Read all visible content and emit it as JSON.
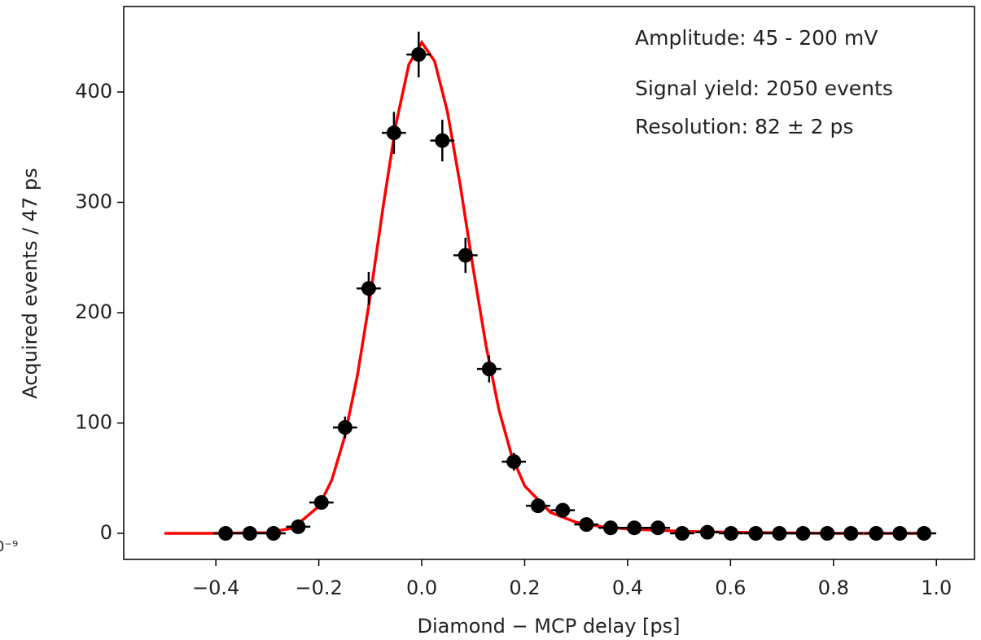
{
  "chart_data": {
    "type": "errorbar",
    "xlabel": "Diamond − MCP delay [ps]",
    "ylabel": "Acquired events / 47 ps",
    "offset_text": "0⁻⁹",
    "annotations": [
      "Amplitude: 45 - 200 mV",
      "Signal yield: 2050 events",
      "Resolution: 82 ± 2 ps"
    ],
    "xlim": [
      -0.579,
      1.074
    ],
    "ylim": [
      -23.6,
      477.5
    ],
    "xticks": [
      {
        "value": -0.4,
        "label": "−0.4"
      },
      {
        "value": -0.2,
        "label": "−0.2"
      },
      {
        "value": 0,
        "label": "0.0"
      },
      0.2,
      0.4,
      0.6,
      0.8,
      {
        "value": 1,
        "label": "1.0"
      }
    ],
    "yticks": [
      0,
      100,
      200,
      300,
      400
    ],
    "series": [
      {
        "type": "errorbar",
        "color": "#000000",
        "x": [
          -0.381,
          -0.334,
          -0.288,
          -0.24,
          -0.195,
          -0.149,
          -0.103,
          -0.054,
          -0.006,
          0.04,
          0.085,
          0.131,
          0.179,
          0.226,
          0.274,
          0.32,
          0.367,
          0.413,
          0.459,
          0.506,
          0.555,
          0.601,
          0.649,
          0.695,
          0.741,
          0.788,
          0.834,
          0.883,
          0.929,
          0.976
        ],
        "values": [
          0,
          0,
          0,
          6,
          28,
          96,
          222,
          363,
          434,
          356,
          252,
          149,
          65,
          25,
          21,
          8,
          5,
          5,
          5,
          0,
          1,
          0,
          0,
          0,
          0,
          0,
          0,
          0,
          0,
          0
        ],
        "yerr": [
          0,
          0,
          0,
          2.4,
          5.3,
          9.8,
          14.9,
          19,
          20.8,
          18.9,
          15.9,
          12.2,
          8.1,
          5,
          4.6,
          2.8,
          2.2,
          2.2,
          2.2,
          0,
          1,
          0,
          0,
          0,
          0,
          0,
          0,
          0,
          0,
          0
        ],
        "xerr": 0.0235
      },
      {
        "type": "line",
        "color": "#ff0000",
        "x": [
          -0.5,
          -0.4,
          -0.3,
          -0.25,
          -0.2,
          -0.175,
          -0.15,
          -0.125,
          -0.1,
          -0.075,
          -0.05,
          -0.025,
          0,
          0.025,
          0.05,
          0.075,
          0.1,
          0.125,
          0.15,
          0.175,
          0.2,
          0.25,
          0.3,
          0.35,
          0.4,
          0.5,
          0.6,
          0.8,
          0.98
        ],
        "values": [
          0,
          0,
          0.7,
          4.8,
          24.5,
          48,
          87,
          143,
          215,
          296,
          371,
          425,
          445,
          428,
          382,
          315,
          240,
          170,
          112,
          70,
          43,
          19,
          10,
          6,
          4,
          2,
          1,
          0,
          0
        ]
      }
    ]
  }
}
